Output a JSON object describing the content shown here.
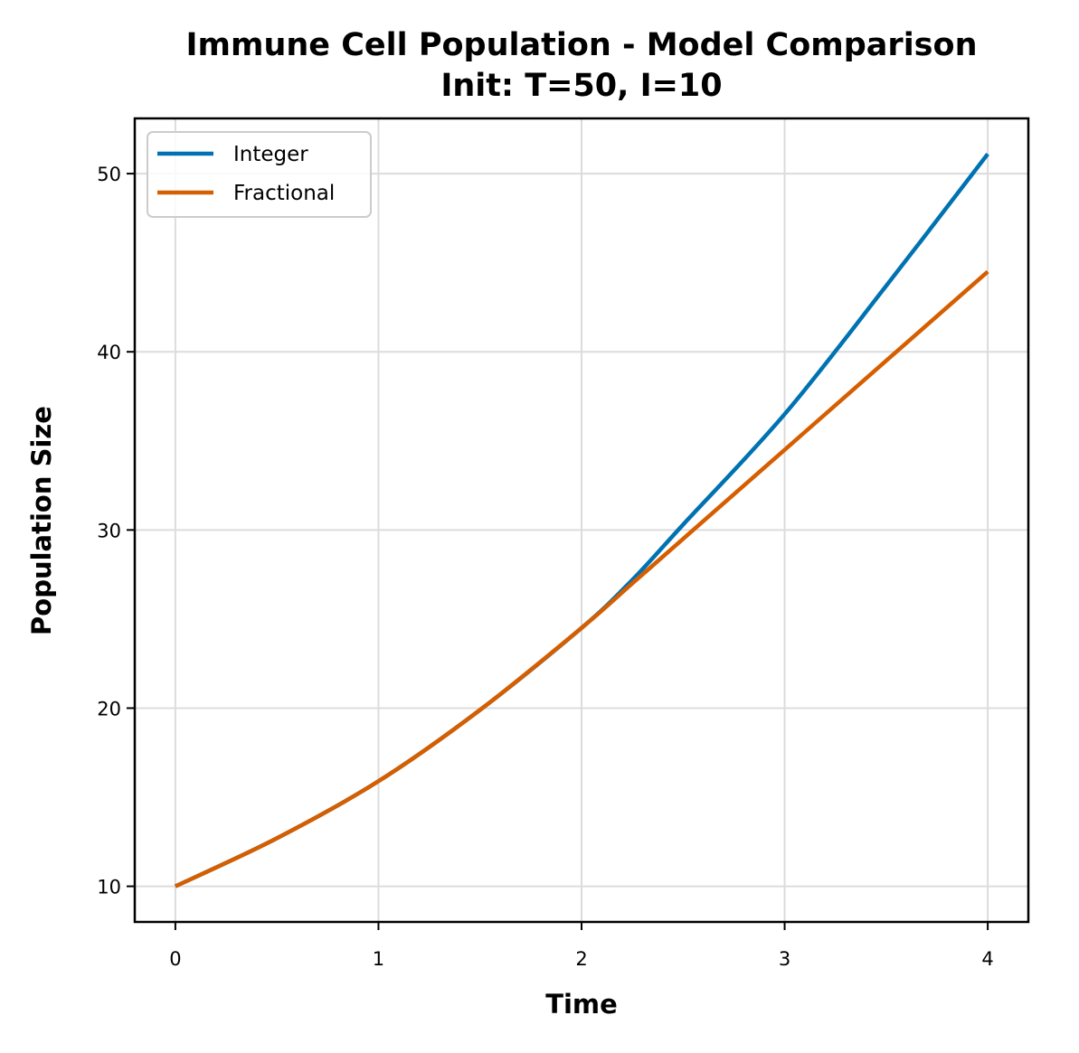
{
  "chart_data": {
    "type": "line",
    "title": "Immune Cell Population - Model Comparison",
    "subtitle": "Init: T=50, I=10",
    "xlabel": "Time",
    "ylabel": "Population Size",
    "xlim": [
      -0.2,
      4.2
    ],
    "ylim": [
      8.0,
      53.1
    ],
    "xticks": [
      0,
      1,
      2,
      3,
      4
    ],
    "yticks": [
      10,
      20,
      30,
      40,
      50
    ],
    "grid": true,
    "legend_position": "top-left",
    "series": [
      {
        "name": "Integer",
        "color": "#0072b2",
        "x": [
          0,
          0.5,
          1,
          1.5,
          2,
          2.25,
          2.5,
          3,
          3.5,
          4
        ],
        "y": [
          10,
          12.7,
          15.9,
          19.9,
          24.5,
          27.2,
          30.3,
          36.5,
          43.7,
          51.1
        ]
      },
      {
        "name": "Fractional",
        "color": "#d55e00",
        "x": [
          0,
          0.5,
          1,
          1.5,
          2,
          2.25,
          2.5,
          3,
          3.5,
          4
        ],
        "y": [
          10,
          12.7,
          15.9,
          19.9,
          24.5,
          27.0,
          29.5,
          34.5,
          39.5,
          44.5
        ]
      }
    ]
  }
}
